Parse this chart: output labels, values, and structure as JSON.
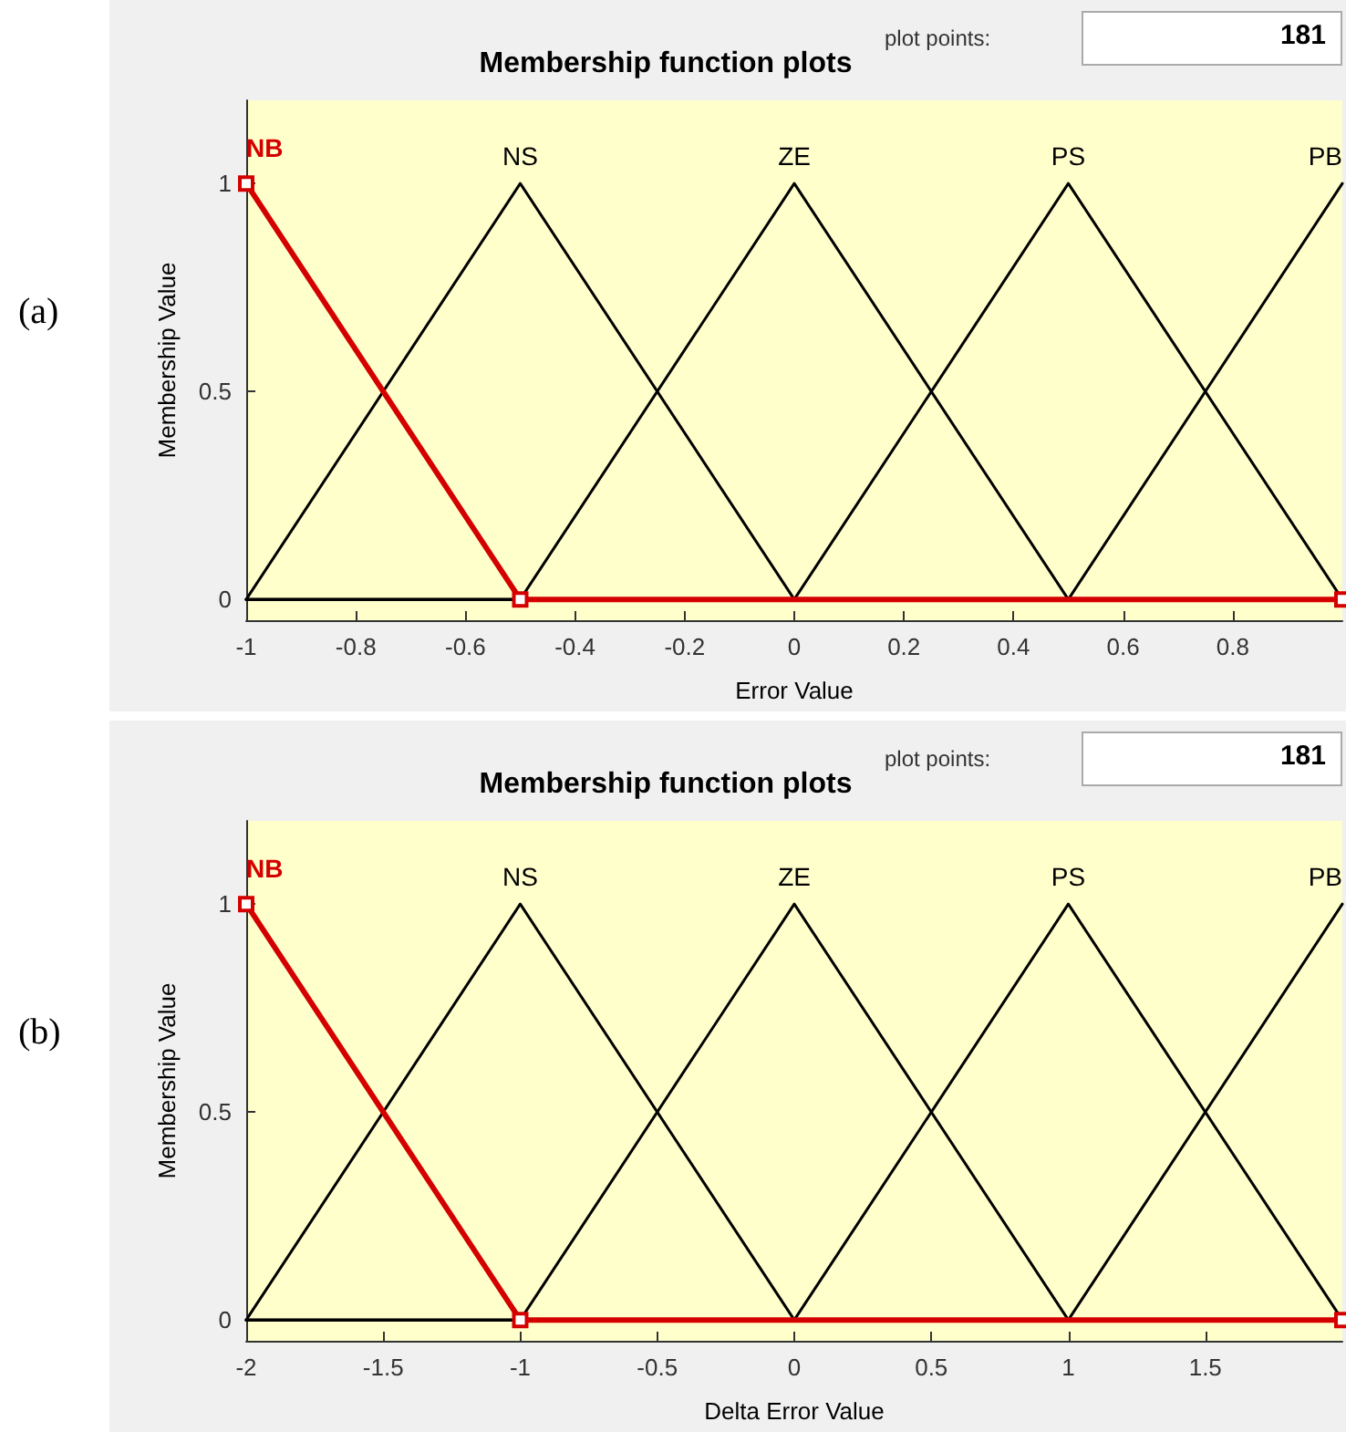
{
  "chart_data": [
    {
      "type": "line",
      "title": "Membership function plots",
      "xlabel": "Error Value",
      "ylabel": "Membership Value",
      "annotations": [
        "(a)",
        "plot points:",
        "181"
      ],
      "xlim": [
        -1,
        1
      ],
      "xticks": [
        -1,
        -0.8,
        -0.6,
        -0.4,
        -0.2,
        0,
        0.2,
        0.4,
        0.6,
        0.8
      ],
      "ylim": [
        -0.05,
        1.2
      ],
      "yticks": [
        0,
        0.5,
        1
      ],
      "grid": false,
      "legend": false,
      "line_style": "solid",
      "series": [
        {
          "name": "NB",
          "color": "#d40000",
          "marker": "square",
          "x": [
            -1,
            -0.5,
            1
          ],
          "values": [
            1,
            0,
            0
          ]
        },
        {
          "name": "NS",
          "color": "#000000",
          "x": [
            -1,
            -0.5,
            0,
            1
          ],
          "values": [
            0,
            1,
            0,
            0
          ]
        },
        {
          "name": "ZE",
          "color": "#000000",
          "x": [
            -1,
            -0.5,
            0,
            0.5,
            1
          ],
          "values": [
            0,
            0,
            1,
            0,
            0
          ]
        },
        {
          "name": "PS",
          "color": "#000000",
          "x": [
            -1,
            0,
            0.5,
            1
          ],
          "values": [
            0,
            0,
            1,
            0
          ]
        },
        {
          "name": "PB",
          "color": "#000000",
          "x": [
            -1,
            0.5,
            1
          ],
          "values": [
            0,
            0,
            1
          ]
        }
      ]
    },
    {
      "type": "line",
      "title": "Membership function plots",
      "xlabel": "Delta Error Value",
      "ylabel": "Membership Value",
      "annotations": [
        "(b)",
        "plot points:",
        "181"
      ],
      "xlim": [
        -2,
        2
      ],
      "xticks": [
        -2,
        -1.5,
        -1,
        -0.5,
        0,
        0.5,
        1,
        1.5
      ],
      "ylim": [
        -0.05,
        1.2
      ],
      "yticks": [
        0,
        0.5,
        1
      ],
      "grid": false,
      "legend": false,
      "line_style": "solid",
      "series": [
        {
          "name": "NB",
          "color": "#d40000",
          "marker": "square",
          "x": [
            -2,
            -1,
            2
          ],
          "values": [
            1,
            0,
            0
          ]
        },
        {
          "name": "NS",
          "color": "#000000",
          "x": [
            -2,
            -1,
            0,
            2
          ],
          "values": [
            0,
            1,
            0,
            0
          ]
        },
        {
          "name": "ZE",
          "color": "#000000",
          "x": [
            -2,
            -1,
            0,
            1,
            2
          ],
          "values": [
            0,
            0,
            1,
            0,
            0
          ]
        },
        {
          "name": "PS",
          "color": "#000000",
          "x": [
            -2,
            0,
            1,
            2
          ],
          "values": [
            0,
            0,
            1,
            0
          ]
        },
        {
          "name": "PB",
          "color": "#000000",
          "x": [
            -2,
            1,
            2
          ],
          "values": [
            0,
            0,
            1
          ]
        }
      ]
    }
  ]
}
